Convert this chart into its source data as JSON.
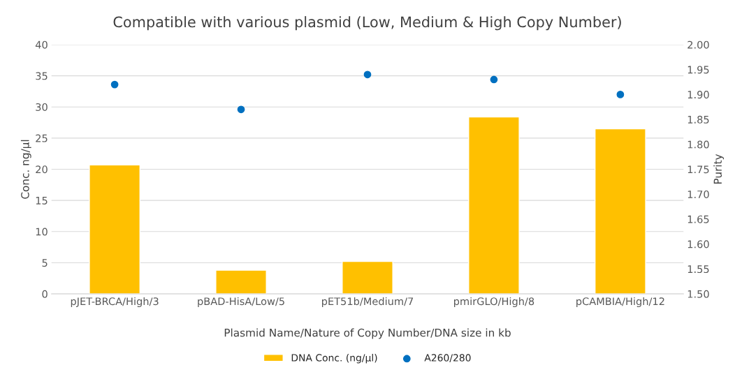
{
  "chart_data": {
    "type": "bar",
    "title": "Compatible with various plasmid (Low, Medium & High Copy Number)",
    "xlabel": "Plasmid Name/Nature of Copy Number/DNA size in kb",
    "ylabel": "Conc. ng/µl",
    "y2label": "Purity",
    "categories": [
      "pJET-BRCA/High/3",
      "pBAD-HisA/Low/5",
      "pET51b/Medium/7",
      "pmirGLO/High/8",
      "pCAMBIA/High/12"
    ],
    "series": [
      {
        "name": "DNA Conc. (ng/µl)",
        "color": "#ffc000",
        "values": [
          20.7,
          3.8,
          5.2,
          28.4,
          26.5
        ]
      },
      {
        "name": "A260/280",
        "type": "scatter",
        "axis": "y2",
        "color": "#0070c0",
        "marker": "circle",
        "values": [
          1.92,
          1.87,
          1.94,
          1.93,
          1.9
        ]
      }
    ],
    "ylim": [
      0,
      40
    ],
    "yticks": [
      0,
      5,
      10,
      15,
      20,
      25,
      30,
      35,
      40
    ],
    "y2lim": [
      1.5,
      2.0
    ],
    "y2ticks": [
      {
        "value": 1.5,
        "label": "1.50"
      },
      {
        "value": 1.55,
        "label": "1.55"
      },
      {
        "value": 1.6,
        "label": "1.60"
      },
      {
        "value": 1.65,
        "label": "1.65"
      },
      {
        "value": 1.7,
        "label": "1.70"
      },
      {
        "value": 1.75,
        "label": "1.75"
      },
      {
        "value": 1.8,
        "label": "1.80"
      },
      {
        "value": 1.85,
        "label": "1.85"
      },
      {
        "value": 1.9,
        "label": "1.90"
      },
      {
        "value": 1.95,
        "label": "1.95"
      },
      {
        "value": 2.0,
        "label": "2.00"
      }
    ],
    "grid": "y",
    "legend": "bottom"
  }
}
